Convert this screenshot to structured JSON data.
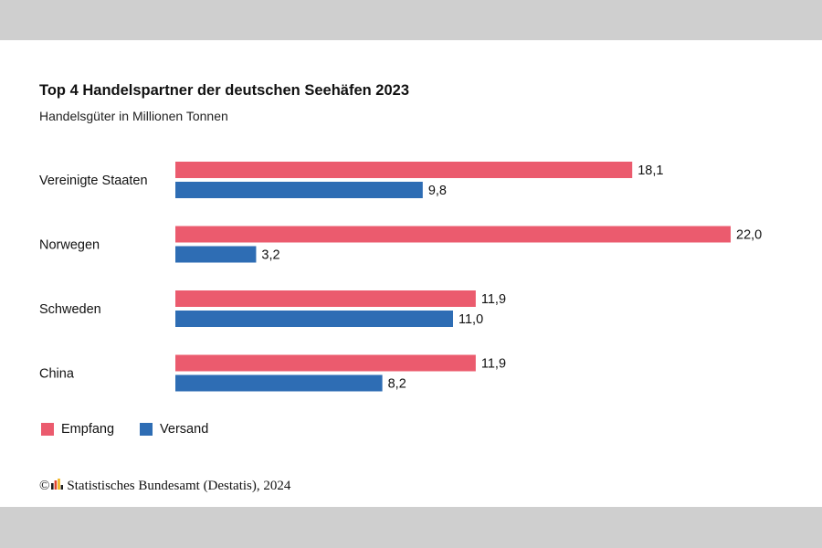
{
  "header": {
    "title": "Top 4 Handelspartner der deutschen Seehäfen 2023",
    "subtitle": "Handelsgüter in Millionen Tonnen"
  },
  "chart_data": {
    "type": "bar",
    "orientation": "horizontal",
    "title": "Top 4 Handelspartner der deutschen Seehäfen 2023",
    "subtitle": "Handelsgüter in Millionen Tonnen",
    "categories": [
      "Vereinigte Staaten",
      "Norwegen",
      "Schweden",
      "China"
    ],
    "series": [
      {
        "name": "Empfang",
        "color": "#eb5b6e",
        "values": [
          18.1,
          22.0,
          11.9,
          11.9
        ],
        "labels": [
          "18,1",
          "22,0",
          "11,9",
          "11,9"
        ]
      },
      {
        "name": "Versand",
        "color": "#2e6db4",
        "values": [
          9.8,
          3.2,
          11.0,
          8.2
        ],
        "labels": [
          "9,8",
          "3,2",
          "11,0",
          "8,2"
        ]
      }
    ],
    "xlim": [
      0,
      22
    ],
    "grid": false,
    "legend_position": "bottom-left"
  },
  "legend": {
    "items": [
      {
        "label": "Empfang",
        "color": "#eb5b6e"
      },
      {
        "label": "Versand",
        "color": "#2e6db4"
      }
    ]
  },
  "footer": {
    "copyright_symbol": "©",
    "source": "Statistisches Bundesamt (Destatis), 2024",
    "logo_icon": "destatis-logo-icon"
  }
}
